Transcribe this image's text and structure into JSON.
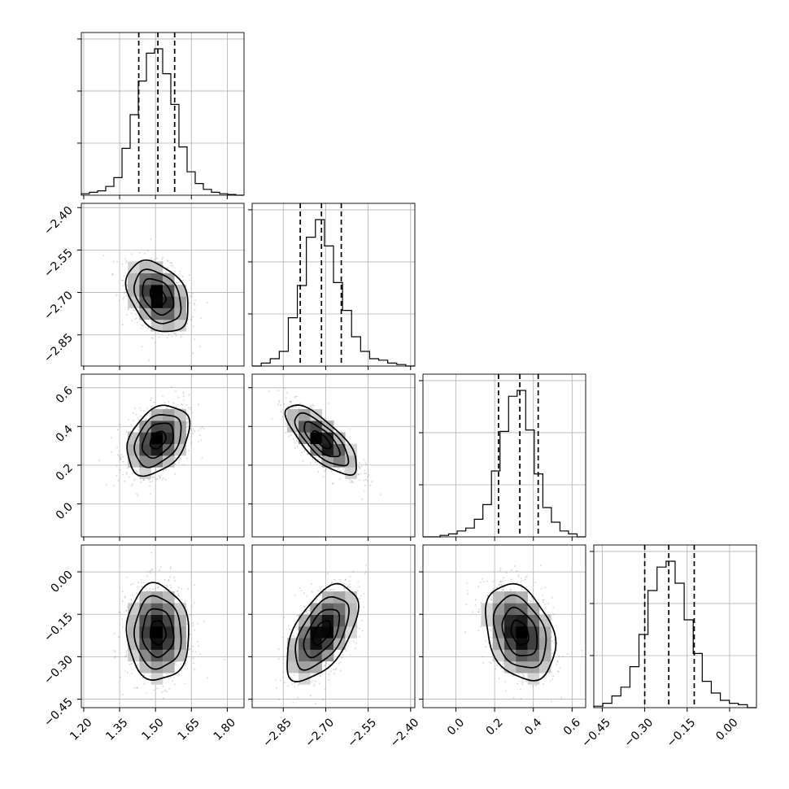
{
  "chart_data": {
    "type": "corner",
    "title": "",
    "grid": true,
    "params": [
      {
        "name": "",
        "mean": 1.51,
        "sd": 0.065,
        "range": [
          1.19,
          1.87
        ],
        "ticks": [
          1.2,
          1.35,
          1.5,
          1.65,
          1.8
        ],
        "tick_labels": [
          "1.20",
          "1.35",
          "1.50",
          "1.65",
          "1.80"
        ],
        "quantiles": [
          1.43,
          1.51,
          1.58
        ],
        "hist": [
          0.01,
          0.02,
          0.03,
          0.06,
          0.12,
          0.32,
          0.55,
          0.78,
          0.97,
          1.0,
          0.83,
          0.62,
          0.33,
          0.16,
          0.08,
          0.04,
          0.02,
          0.01,
          0.005,
          0.0
        ]
      },
      {
        "name": "",
        "mean": -2.714,
        "sd": 0.063,
        "range": [
          -2.96,
          -2.385
        ],
        "ticks": [
          -2.85,
          -2.7,
          -2.55,
          -2.4
        ],
        "tick_labels": [
          "−2.85",
          "−2.70",
          "−2.55",
          "−2.40"
        ],
        "quantiles": [
          -2.79,
          -2.715,
          -2.645
        ],
        "hist": [
          0.0,
          0.02,
          0.05,
          0.1,
          0.33,
          0.55,
          0.88,
          1.0,
          0.82,
          0.57,
          0.38,
          0.2,
          0.1,
          0.05,
          0.04,
          0.02,
          0.01,
          0.0
        ]
      },
      {
        "name": "",
        "mean": 0.33,
        "sd": 0.09,
        "range": [
          -0.17,
          0.67
        ],
        "ticks": [
          0.0,
          0.2,
          0.4,
          0.6
        ],
        "tick_labels": [
          "0.0",
          "0.2",
          "0.4",
          "0.6"
        ],
        "quantiles": [
          0.22,
          0.33,
          0.425
        ],
        "hist": [
          0.0,
          0.0,
          0.01,
          0.02,
          0.04,
          0.06,
          0.12,
          0.22,
          0.45,
          0.72,
          0.96,
          1.0,
          0.73,
          0.43,
          0.2,
          0.1,
          0.04,
          0.02,
          0.0
        ]
      },
      {
        "name": "",
        "mean": -0.215,
        "sd": 0.085,
        "range": [
          -0.48,
          0.095
        ],
        "ticks": [
          -0.45,
          -0.3,
          -0.15,
          0.0
        ],
        "tick_labels": [
          "−0.45",
          "−0.30",
          "−0.15",
          "0.00"
        ],
        "quantiles": [
          -0.3,
          -0.215,
          -0.125
        ],
        "hist": [
          0.01,
          0.03,
          0.08,
          0.14,
          0.28,
          0.5,
          0.8,
          0.96,
          1.0,
          0.85,
          0.6,
          0.37,
          0.18,
          0.1,
          0.05,
          0.03,
          0.02,
          0.0
        ]
      }
    ],
    "pairs": [
      {
        "x": 0,
        "y": 1,
        "corr": -0.35
      },
      {
        "x": 0,
        "y": 2,
        "corr": 0.35
      },
      {
        "x": 1,
        "y": 2,
        "corr": -0.75
      },
      {
        "x": 0,
        "y": 3,
        "corr": -0.05
      },
      {
        "x": 1,
        "y": 3,
        "corr": 0.55
      },
      {
        "x": 2,
        "y": 3,
        "corr": -0.3
      }
    ],
    "contour_levels_sigma": [
      0.5,
      1.0,
      1.5,
      2.0
    ],
    "scatter_color": "#7f7f7f",
    "line_color": "#000000",
    "grid_color": "#b0b0b0"
  }
}
